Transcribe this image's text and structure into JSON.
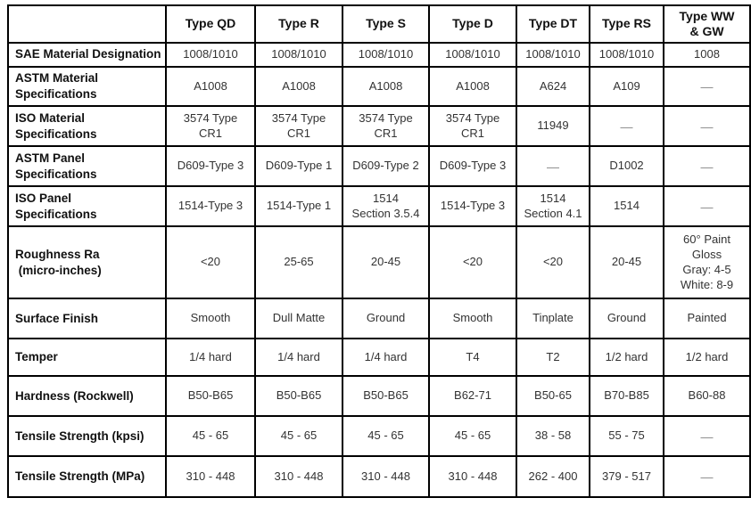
{
  "table": {
    "title": "Steel panel type material specification table",
    "colors": {
      "border": "#000000",
      "label_text": "#111111",
      "data_text": "#333333",
      "dash_text": "#888888",
      "background": "#ffffff"
    },
    "header": {
      "corner": "",
      "columns": [
        "Type QD",
        "Type R",
        "Type S",
        "Type D",
        "Type DT",
        "Type RS",
        "Type WW\n& GW"
      ]
    },
    "rows": [
      {
        "label": "SAE Material Designation",
        "values": [
          "1008/1010",
          "1008/1010",
          "1008/1010",
          "1008/1010",
          "1008/1010",
          "1008/1010",
          "1008"
        ]
      },
      {
        "label": "ASTM Material\nSpecifications",
        "values": [
          "A1008",
          "A1008",
          "A1008",
          "A1008",
          "A624",
          "A109",
          "—"
        ]
      },
      {
        "label": "ISO Material\nSpecifications",
        "values": [
          "3574 Type\nCR1",
          "3574 Type\nCR1",
          "3574 Type\nCR1",
          "3574 Type\nCR1",
          "11949",
          "—",
          "—"
        ]
      },
      {
        "label": "ASTM Panel\nSpecifications",
        "values": [
          "D609-Type 3",
          "D609-Type 1",
          "D609-Type 2",
          "D609-Type 3",
          "—",
          "D1002",
          "—"
        ]
      },
      {
        "label": "ISO Panel\nSpecifications",
        "values": [
          "1514-Type 3",
          "1514-Type 1",
          "1514\nSection 3.5.4",
          "1514-Type 3",
          "1514\nSection 4.1",
          "1514",
          "—"
        ]
      },
      {
        "label": "Roughness Ra\n (micro-inches)",
        "values": [
          "<20",
          "25-65",
          "20-45",
          "<20",
          "<20",
          "20-45",
          "60° Paint\nGloss\nGray: 4-5\nWhite: 8-9"
        ]
      },
      {
        "label": "Surface Finish",
        "values": [
          "Smooth",
          "Dull Matte",
          "Ground",
          "Smooth",
          "Tinplate",
          "Ground",
          "Painted"
        ]
      },
      {
        "label": "Temper",
        "values": [
          "1/4 hard",
          "1/4 hard",
          "1/4 hard",
          "T4",
          "T2",
          "1/2 hard",
          "1/2 hard"
        ]
      },
      {
        "label": "Hardness (Rockwell)",
        "values": [
          "B50-B65",
          "B50-B65",
          "B50-B65",
          "B62-71",
          "B50-65",
          "B70-B85",
          "B60-88"
        ]
      },
      {
        "label": "Tensile Strength (kpsi)",
        "values": [
          "45 - 65",
          "45 - 65",
          "45 - 65",
          "45 - 65",
          "38 - 58",
          "55 - 75",
          "—"
        ]
      },
      {
        "label": "Tensile Strength (MPa)",
        "values": [
          "310 - 448",
          "310 - 448",
          "310 - 448",
          "310 - 448",
          "262 - 400",
          "379 - 517",
          "—"
        ]
      }
    ]
  }
}
